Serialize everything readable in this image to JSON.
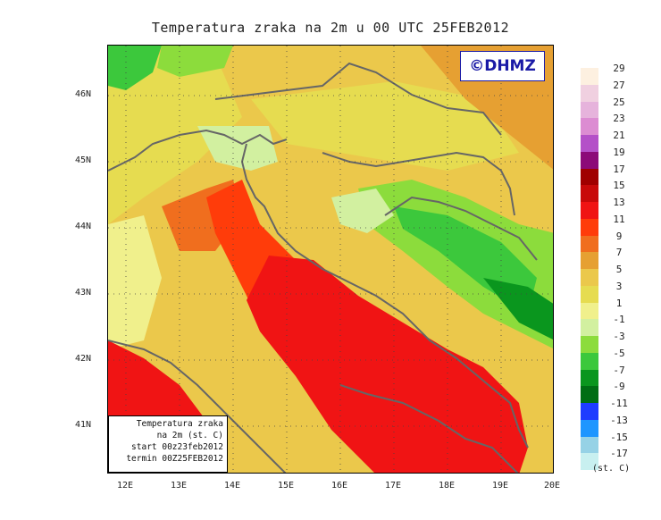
{
  "title": "Temperatura zraka na 2m u 00 UTC 25FEB2012",
  "logo": "©DHMZ",
  "info_box": [
    "Temperatura zraka",
    "na 2m (st. C)",
    "start 00z23feb2012",
    "termin 00Z25FEB2012"
  ],
  "lat_labels": [
    "46N",
    "45N",
    "44N",
    "43N",
    "42N",
    "41N"
  ],
  "lon_labels": [
    "12E",
    "13E",
    "14E",
    "15E",
    "16E",
    "17E",
    "18E",
    "19E",
    "20E"
  ],
  "legend": {
    "unit": "(st. C)",
    "labels": [
      "29",
      "27",
      "25",
      "23",
      "21",
      "19",
      "17",
      "15",
      "13",
      "11",
      "9",
      "7",
      "5",
      "3",
      "1",
      "-1",
      "-3",
      "-5",
      "-7",
      "-9",
      "-11",
      "-13",
      "-15",
      "-17"
    ],
    "colors": [
      "#fdf0e0",
      "#f0d0e0",
      "#e6b3dc",
      "#dc8cd2",
      "#b450c8",
      "#8c0a78",
      "#a00000",
      "#c80a0a",
      "#f01414",
      "#ff3c0a",
      "#f06e1e",
      "#e6a032",
      "#ebc84b",
      "#e6dc50",
      "#f0f08c",
      "#d2f0a0",
      "#8cdc3c",
      "#3cc83c",
      "#0a961e",
      "#006e14",
      "#1e3cff",
      "#1e96ff",
      "#96d2e6",
      "#c8f0f0"
    ]
  }
}
